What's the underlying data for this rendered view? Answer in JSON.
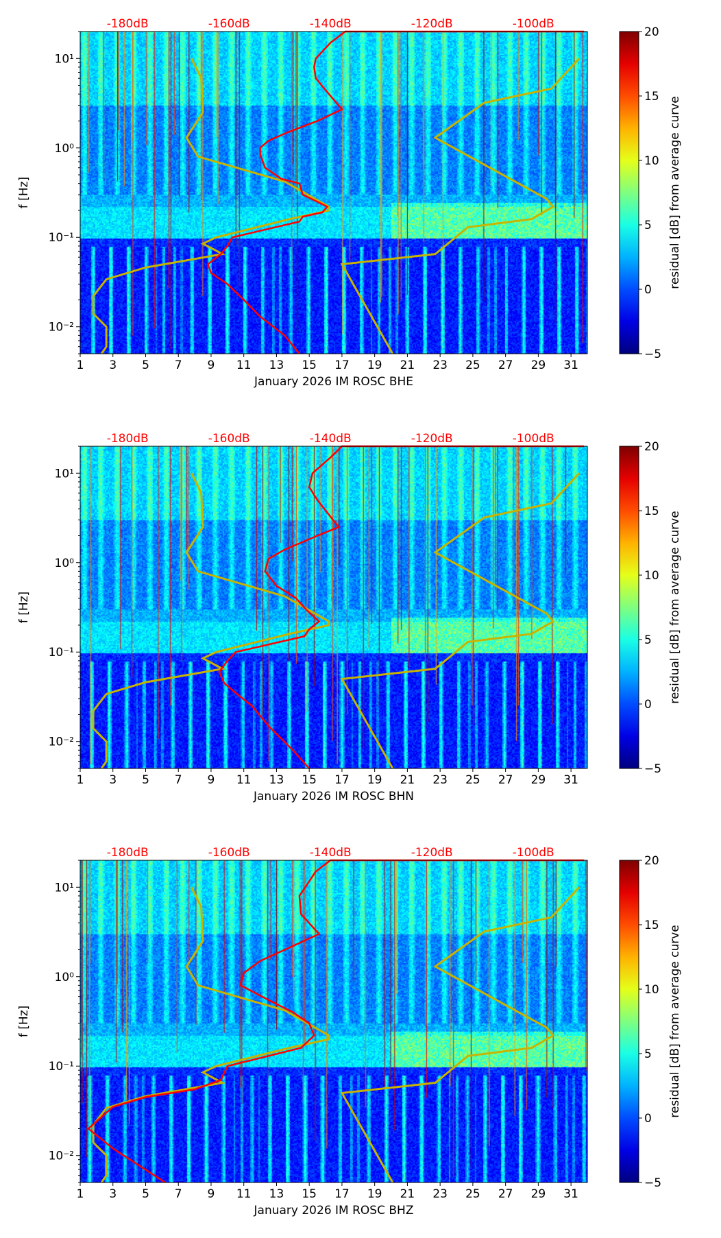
{
  "chart_data": [
    {
      "type": "heatmap",
      "xlabel": "January 2026 IM ROSC  BHE",
      "ylabel": "f [Hz]",
      "colorbar_label": "residual [dB] from average curve",
      "seed": 1
    },
    {
      "type": "heatmap",
      "xlabel": "January 2026 IM ROSC  BHN",
      "ylabel": "f [Hz]",
      "colorbar_label": "residual [dB] from average curve",
      "seed": 2
    },
    {
      "type": "heatmap",
      "xlabel": "January 2026 IM ROSC  BHZ",
      "ylabel": "f [Hz]",
      "colorbar_label": "residual [dB] from average curve",
      "seed": 3
    }
  ],
  "shared": {
    "xlim": [
      1,
      32
    ],
    "ylim": [
      0.005,
      20
    ],
    "yscale": "log",
    "x_ticks": [
      1,
      3,
      5,
      7,
      9,
      11,
      13,
      15,
      17,
      19,
      21,
      23,
      25,
      27,
      29,
      31
    ],
    "y_ticks": [
      {
        "v": 0.01,
        "label": "10⁻²"
      },
      {
        "v": 0.1,
        "label": "10⁻¹"
      },
      {
        "v": 1,
        "label": "10⁰"
      },
      {
        "v": 10,
        "label": "10¹"
      }
    ],
    "top_ticks": [
      {
        "day": 3.9,
        "label": "-180dB"
      },
      {
        "day": 10.1,
        "label": "-160dB"
      },
      {
        "day": 16.3,
        "label": "-140dB"
      },
      {
        "day": 22.5,
        "label": "-120dB"
      },
      {
        "day": 28.7,
        "label": "-100dB"
      }
    ],
    "colorbar": {
      "range": [
        -5,
        20
      ],
      "ticks": [
        -5,
        0,
        5,
        10,
        15,
        20
      ]
    },
    "nlnm": [
      [
        7.8,
        10
      ],
      [
        8.4,
        6
      ],
      [
        8.5,
        2.5
      ],
      [
        7.5,
        1.3
      ],
      [
        8.2,
        0.8
      ],
      [
        13.5,
        0.42
      ],
      [
        16.2,
        0.22
      ],
      [
        16.2,
        0.2
      ],
      [
        13.8,
        0.16
      ],
      [
        9.3,
        0.1
      ],
      [
        8.5,
        0.085
      ],
      [
        9.7,
        0.065
      ],
      [
        5,
        0.046
      ],
      [
        2.6,
        0.034
      ],
      [
        1.8,
        0.022
      ],
      [
        1.8,
        0.014
      ],
      [
        2.6,
        0.01
      ],
      [
        2.6,
        0.006
      ],
      [
        2.3,
        0.005
      ]
    ],
    "nhnm": [
      [
        31.5,
        10
      ],
      [
        29.8,
        4.6
      ],
      [
        25.7,
        3.2
      ],
      [
        22.7,
        1.3
      ],
      [
        29.5,
        0.27
      ],
      [
        29.9,
        0.22
      ],
      [
        28.6,
        0.16
      ],
      [
        24.7,
        0.13
      ],
      [
        22.7,
        0.065
      ],
      [
        17,
        0.05
      ],
      [
        20.1,
        0.005
      ]
    ],
    "colors": {
      "median": "#ff0000",
      "models": "#c8b400",
      "top_labels": "#ff0000"
    }
  },
  "median_curves": [
    [
      [
        31.8,
        20
      ],
      [
        17.2,
        20
      ],
      [
        16.3,
        15
      ],
      [
        15.4,
        10
      ],
      [
        15.3,
        8
      ],
      [
        15.4,
        6
      ],
      [
        16.2,
        4
      ],
      [
        17,
        2.7
      ],
      [
        15.5,
        2
      ],
      [
        13.7,
        1.5
      ],
      [
        12.5,
        1.2
      ],
      [
        12,
        1
      ],
      [
        12,
        0.85
      ],
      [
        12.3,
        0.6
      ],
      [
        13.3,
        0.45
      ],
      [
        14.4,
        0.4
      ],
      [
        14.6,
        0.3
      ],
      [
        15.5,
        0.25
      ],
      [
        16.1,
        0.22
      ],
      [
        15.8,
        0.19
      ],
      [
        14.6,
        0.17
      ],
      [
        14.4,
        0.15
      ],
      [
        10.3,
        0.1
      ],
      [
        10,
        0.08
      ],
      [
        9.6,
        0.065
      ],
      [
        8.8,
        0.05
      ],
      [
        9,
        0.04
      ],
      [
        10,
        0.03
      ],
      [
        11,
        0.02
      ],
      [
        12,
        0.013
      ],
      [
        13.5,
        0.008
      ],
      [
        14.4,
        0.005
      ]
    ],
    [
      [
        31.8,
        20
      ],
      [
        17,
        20
      ],
      [
        16.3,
        15
      ],
      [
        15.2,
        10
      ],
      [
        15,
        7
      ],
      [
        15.5,
        5
      ],
      [
        16.8,
        2.5
      ],
      [
        15.5,
        2
      ],
      [
        13.5,
        1.4
      ],
      [
        12.5,
        1.1
      ],
      [
        12.3,
        0.8
      ],
      [
        13,
        0.55
      ],
      [
        14.2,
        0.4
      ],
      [
        14.8,
        0.3
      ],
      [
        15.6,
        0.22
      ],
      [
        15,
        0.18
      ],
      [
        14.7,
        0.15
      ],
      [
        10.5,
        0.1
      ],
      [
        10,
        0.08
      ],
      [
        9.5,
        0.06
      ],
      [
        9.8,
        0.045
      ],
      [
        10.5,
        0.035
      ],
      [
        11.5,
        0.025
      ],
      [
        12.5,
        0.015
      ],
      [
        14,
        0.008
      ],
      [
        15,
        0.005
      ]
    ],
    [
      [
        31.8,
        20
      ],
      [
        16.3,
        20
      ],
      [
        15.4,
        15
      ],
      [
        14.4,
        8
      ],
      [
        14.5,
        5
      ],
      [
        15.6,
        3
      ],
      [
        13.5,
        2
      ],
      [
        12,
        1.5
      ],
      [
        11,
        1.1
      ],
      [
        10.8,
        0.8
      ],
      [
        12.5,
        0.55
      ],
      [
        14,
        0.4
      ],
      [
        15,
        0.3
      ],
      [
        15.3,
        0.22
      ],
      [
        14.5,
        0.16
      ],
      [
        10,
        0.1
      ],
      [
        9.6,
        0.07
      ],
      [
        8,
        0.055
      ],
      [
        5,
        0.045
      ],
      [
        3,
        0.035
      ],
      [
        1.5,
        0.02
      ],
      [
        3,
        0.012
      ],
      [
        6.2,
        0.005
      ]
    ]
  ]
}
